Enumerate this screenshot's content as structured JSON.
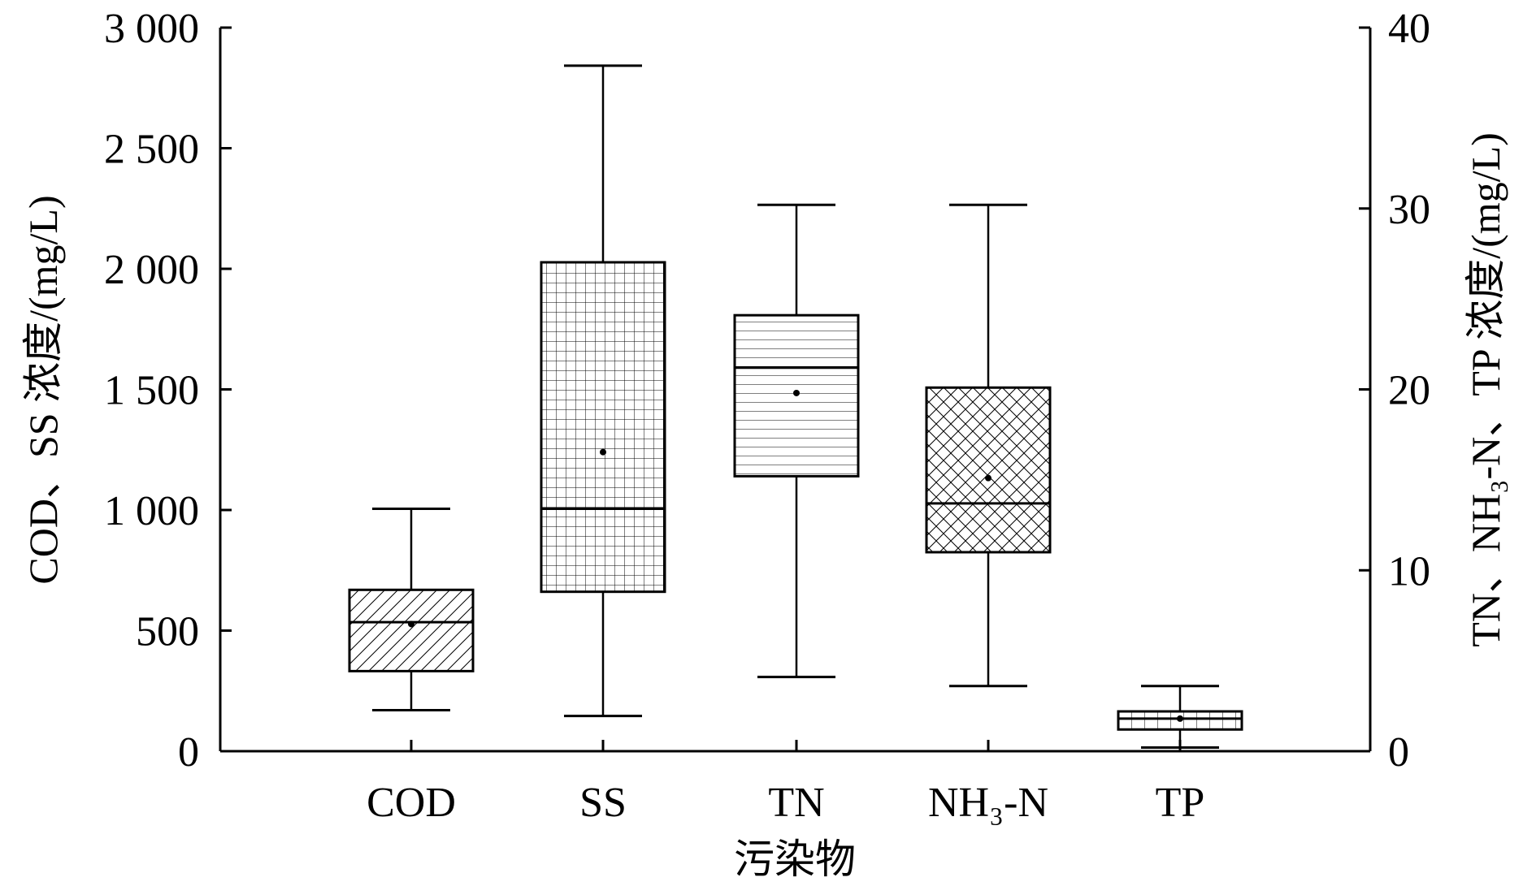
{
  "chart_data": {
    "type": "box",
    "xlabel": "污染物",
    "ylabel_left": "COD、SS 浓度/(mg/L)",
    "ylabel_right": "TN、NH₃-N、TP 浓度/(mg/L)",
    "ylim_left": [
      0,
      3000
    ],
    "ylim_right": [
      0,
      40
    ],
    "yticks_left": [
      "0",
      "500",
      "1 000",
      "1 500",
      "2 000",
      "2 500",
      "3 000"
    ],
    "yticks_right": [
      "0",
      "10",
      "20",
      "30",
      "40"
    ],
    "grid": false,
    "categories": [
      "COD",
      "SS",
      "TN",
      "NH₃-N",
      "TP"
    ],
    "boxes": [
      {
        "name": "COD",
        "axis": "left",
        "pattern": "diagonal",
        "min": 170,
        "q1": 332,
        "median": 535,
        "q3": 669,
        "max": 1005,
        "mean": 527
      },
      {
        "name": "SS",
        "axis": "left",
        "pattern": "grid",
        "min": 146,
        "q1": 661,
        "median": 1005,
        "q3": 2027,
        "max": 2842,
        "mean": 1240
      },
      {
        "name": "TN",
        "axis": "right",
        "pattern": "horizontal",
        "min": 4.1,
        "q1": 15.2,
        "median": 21.2,
        "q3": 24.1,
        "max": 30.2,
        "mean": 19.8
      },
      {
        "name": "NH₃-N",
        "axis": "right",
        "pattern": "crosshatch",
        "min": 3.6,
        "q1": 11.0,
        "median": 13.7,
        "q3": 20.1,
        "max": 30.2,
        "mean": 15.1
      },
      {
        "name": "TP",
        "axis": "right",
        "pattern": "vertical",
        "min": 0.2,
        "q1": 1.2,
        "median": 1.8,
        "q3": 2.2,
        "max": 3.6,
        "mean": 1.8
      }
    ]
  }
}
